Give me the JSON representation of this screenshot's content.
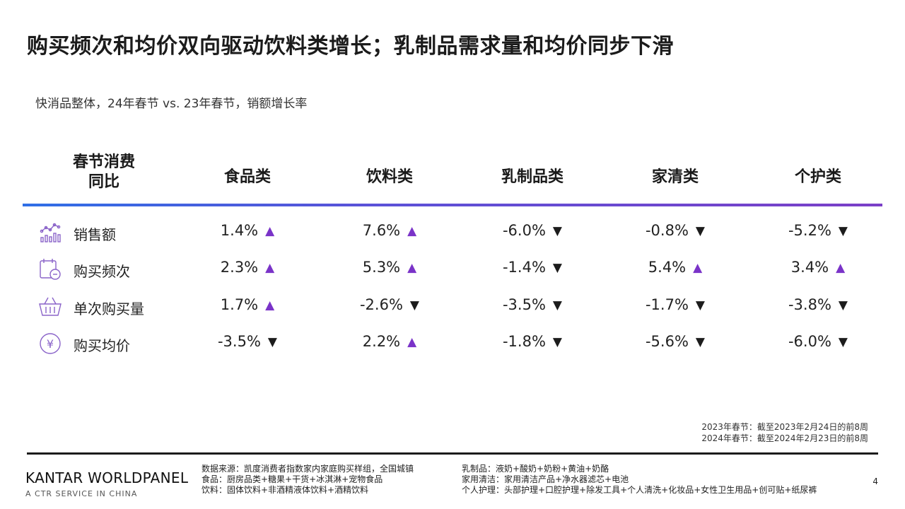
{
  "title": "购买频次和均价双向驱动饮料类增长；乳制品需求量和均价同步下滑",
  "subtitle": "快消品整体，24年春节 vs. 23年春节，销额增长率",
  "table": {
    "first_header_line1": "春节消费",
    "first_header_line2": "同比",
    "columns": [
      "食品类",
      "饮料类",
      "乳制品类",
      "家清类",
      "个护类"
    ],
    "rows": [
      {
        "label": "销售额",
        "icon": "sales-chart-icon",
        "cells": [
          {
            "value": "1.4%",
            "trend": "up"
          },
          {
            "value": "7.6%",
            "trend": "up"
          },
          {
            "value": "-6.0%",
            "trend": "down"
          },
          {
            "value": "-0.8%",
            "trend": "down"
          },
          {
            "value": "-5.2%",
            "trend": "down"
          }
        ]
      },
      {
        "label": "购买频次",
        "icon": "calendar-clock-icon",
        "cells": [
          {
            "value": "2.3%",
            "trend": "up"
          },
          {
            "value": "5.3%",
            "trend": "up"
          },
          {
            "value": "-1.4%",
            "trend": "down"
          },
          {
            "value": "5.4%",
            "trend": "up"
          },
          {
            "value": "3.4%",
            "trend": "up"
          }
        ]
      },
      {
        "label": "单次购买量",
        "icon": "shopping-basket-icon",
        "cells": [
          {
            "value": "1.7%",
            "trend": "up"
          },
          {
            "value": "-2.6%",
            "trend": "down"
          },
          {
            "value": "-3.5%",
            "trend": "down"
          },
          {
            "value": "-1.7%",
            "trend": "down"
          },
          {
            "value": "-3.8%",
            "trend": "down"
          }
        ]
      },
      {
        "label": "购买均价",
        "icon": "yuan-coin-icon",
        "cells": [
          {
            "value": "-3.5%",
            "trend": "down"
          },
          {
            "value": "2.2%",
            "trend": "up"
          },
          {
            "value": "-1.8%",
            "trend": "down"
          },
          {
            "value": "-5.6%",
            "trend": "down"
          },
          {
            "value": "-6.0%",
            "trend": "down"
          }
        ]
      }
    ]
  },
  "arrows": {
    "up": "▲",
    "down": "▼"
  },
  "colors": {
    "accent_purple": "#7a33c8",
    "gradient_start": "#2f6fe6",
    "gradient_end": "#7b3fc7"
  },
  "period_notes": [
    "2023年春节：截至2023年2月24日的前8周",
    "2024年春节：截至2024年2月23日的前8周"
  ],
  "footer": {
    "brand": "KANTAR WORLDPANEL",
    "brand_sub": "A CTR SERVICE IN CHINA",
    "col1": [
      "数据来源：凯度消费者指数家内家庭购买样组，全国城镇",
      "食品：厨房品类+糖果+干货+冰淇淋+宠物食品",
      "饮料：固体饮料+非酒精液体饮料+酒精饮料"
    ],
    "col2": [
      "乳制品：液奶+酸奶+奶粉+黄油+奶酪",
      "家用清洁：家用清洁产品+净水器滤芯+电池",
      "个人护理：头部护理+口腔护理+除发工具+个人清洗+化妆品+女性卫生用品+创可贴+纸尿裤"
    ],
    "page_number": "4"
  }
}
